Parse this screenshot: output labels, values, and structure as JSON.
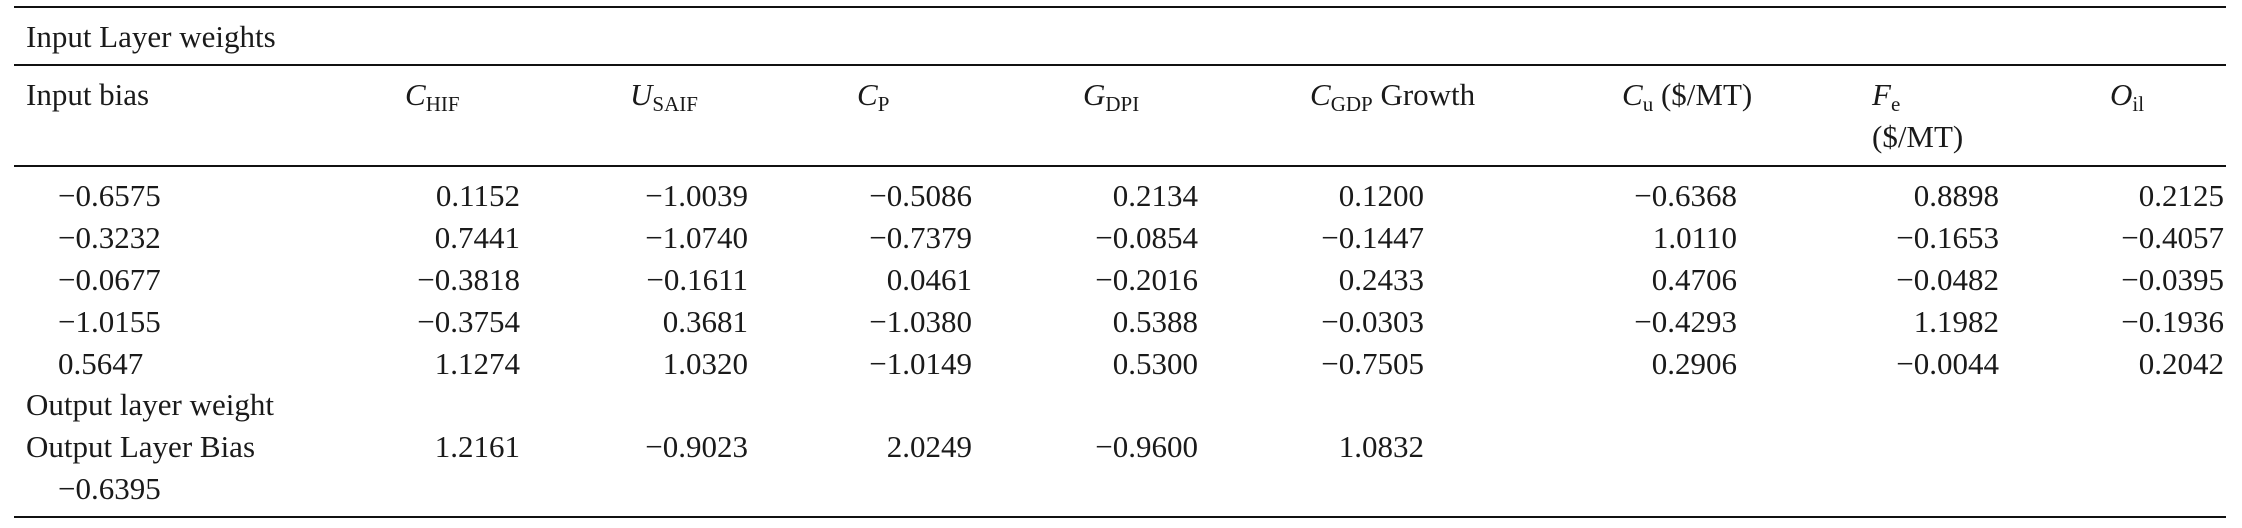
{
  "caption_row": "Input Layer weights",
  "headers": [
    {
      "var": "Input bias"
    },
    {
      "var": "C",
      "sub": "HIF"
    },
    {
      "var": "U",
      "sub": "SAIF"
    },
    {
      "var": "C",
      "sub": "P"
    },
    {
      "var": "G",
      "sub": "DPI"
    },
    {
      "var": "C",
      "sub": "GDP",
      "suffix": " Growth"
    },
    {
      "var": "C",
      "sub": "u",
      "suffix": " ($/MT)"
    },
    {
      "var": "F",
      "sub": "e",
      "unit": "($/MT)"
    },
    {
      "var": "O",
      "sub": "il"
    }
  ],
  "rows": [
    [
      "−0.6575",
      "0.1152",
      "−1.0039",
      "−0.5086",
      "0.2134",
      "0.1200",
      "−0.6368",
      "0.8898",
      "0.2125"
    ],
    [
      "−0.3232",
      "0.7441",
      "−1.0740",
      "−0.7379",
      "−0.0854",
      "−0.1447",
      "1.0110",
      "−0.1653",
      "−0.4057"
    ],
    [
      "−0.0677",
      "−0.3818",
      "−0.1611",
      "0.0461",
      "−0.2016",
      "0.2433",
      "0.4706",
      "−0.0482",
      "−0.0395"
    ],
    [
      "−1.0155",
      "−0.3754",
      "0.3681",
      "−1.0380",
      "0.5388",
      "−0.0303",
      "−0.4293",
      "1.1982",
      "−0.1936"
    ],
    [
      "0.5647",
      "1.1274",
      "1.0320",
      "−1.0149",
      "0.5300",
      "−0.7505",
      "0.2906",
      "−0.0044",
      "0.2042"
    ]
  ],
  "output_weight_label": "Output layer weight",
  "output_bias_label": "Output Layer Bias",
  "output_bias_value": "−0.6395",
  "output_weights": [
    "1.2161",
    "−0.9023",
    "2.0249",
    "−0.9600",
    "1.0832"
  ]
}
